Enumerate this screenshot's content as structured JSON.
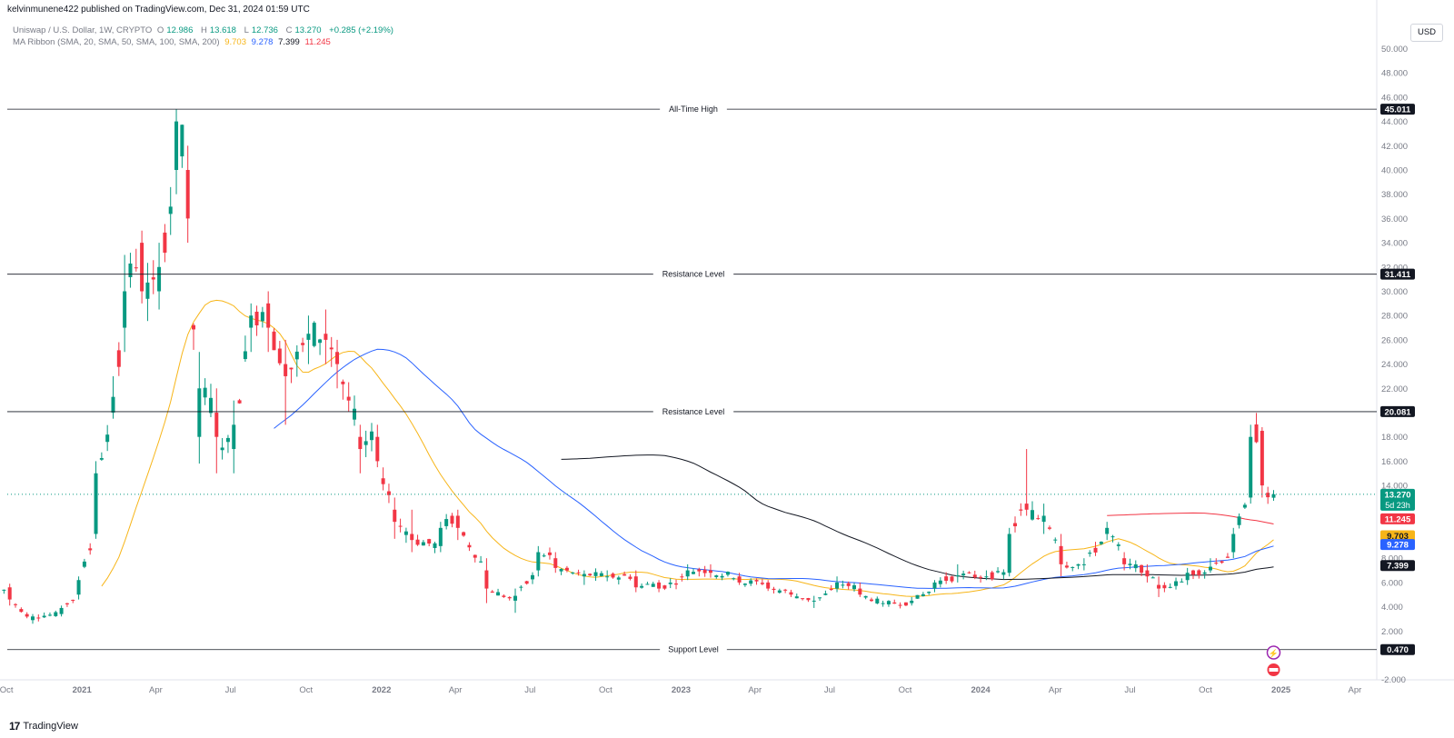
{
  "header": {
    "published": "kelvinmunene422 published on TradingView.com, Dec 31, 2024 01:59 UTC"
  },
  "legend": {
    "symbol": "Uniswap / U.S. Dollar, 1W, CRYPTO",
    "o_label": "O",
    "o_value": "12.986",
    "h_label": "H",
    "h_value": "13.618",
    "l_label": "L",
    "l_value": "12.736",
    "c_label": "C",
    "c_value": "13.270",
    "change": "+0.285 (+2.19%)",
    "ma_label": "MA Ribbon (SMA, 20, SMA, 50, SMA, 100, SMA, 200)",
    "ma_values": [
      {
        "value": "9.703",
        "color": "#f7b518"
      },
      {
        "value": "9.278",
        "color": "#2962ff"
      },
      {
        "value": "7.399",
        "color": "#131722"
      },
      {
        "value": "11.245",
        "color": "#f23645"
      }
    ]
  },
  "toolbar": {
    "currency": "USD"
  },
  "footer": {
    "brand": "TradingView",
    "mark": "17"
  },
  "chart_data": {
    "type": "candlestick",
    "ylim": [
      -2,
      52
    ],
    "y_ticks": [
      "-2.000",
      "2.000",
      "4.000",
      "6.000",
      "8.000",
      "14.000",
      "16.000",
      "18.000",
      "22.000",
      "24.000",
      "26.000",
      "28.000",
      "30.000",
      "32.000",
      "34.000",
      "36.000",
      "38.000",
      "40.000",
      "42.000",
      "44.000",
      "46.000",
      "48.000",
      "50.000"
    ],
    "x_range": [
      "2020-09-01",
      "2025-05-01"
    ],
    "x_ticks": [
      {
        "label": "Oct",
        "date": "2020-10-01"
      },
      {
        "label": "2021",
        "date": "2021-01-01"
      },
      {
        "label": "Apr",
        "date": "2021-04-01"
      },
      {
        "label": "Jul",
        "date": "2021-07-01"
      },
      {
        "label": "Oct",
        "date": "2021-10-01"
      },
      {
        "label": "2022",
        "date": "2022-01-01"
      },
      {
        "label": "Apr",
        "date": "2022-04-01"
      },
      {
        "label": "Jul",
        "date": "2022-07-01"
      },
      {
        "label": "Oct",
        "date": "2022-10-01"
      },
      {
        "label": "2023",
        "date": "2023-01-01"
      },
      {
        "label": "Apr",
        "date": "2023-04-01"
      },
      {
        "label": "Jul",
        "date": "2023-07-01"
      },
      {
        "label": "Oct",
        "date": "2023-10-01"
      },
      {
        "label": "2024",
        "date": "2024-01-01"
      },
      {
        "label": "Apr",
        "date": "2024-04-01"
      },
      {
        "label": "Jul",
        "date": "2024-07-01"
      },
      {
        "label": "Oct",
        "date": "2024-10-01"
      },
      {
        "label": "2025",
        "date": "2025-01-01"
      },
      {
        "label": "Apr",
        "date": "2025-04-01"
      }
    ],
    "horizontal_levels": [
      {
        "label": "All-Time High",
        "value": 45.011,
        "tag": "45.011"
      },
      {
        "label": "Resistance Level",
        "value": 31.411,
        "tag": "31.411"
      },
      {
        "label": "Resistance Level",
        "value": 20.081,
        "tag": "20.081"
      },
      {
        "label": "Support Level",
        "value": 0.47,
        "tag": "0.470"
      }
    ],
    "price_tags": [
      {
        "value": 13.27,
        "text": "13.270",
        "sub": "5d 23h",
        "color": "#089981"
      },
      {
        "value": 11.245,
        "text": "11.245",
        "color": "#f23645"
      },
      {
        "value": 9.703,
        "text": "9.703",
        "color": "#f7b518"
      },
      {
        "value": 9.278,
        "text": "9.278",
        "color": "#2962ff"
      },
      {
        "value": 7.399,
        "text": "7.399",
        "color": "#131722"
      }
    ],
    "last_price": 13.27,
    "colors": {
      "up": "#089981",
      "down": "#f23645",
      "ma20": "#f7b518",
      "ma50": "#2962ff",
      "ma100": "#131722",
      "ma200": "#f23645"
    },
    "ohlc_anchors": [
      [
        "2020-09-14",
        3.5,
        5.0,
        8.7,
        0.47
      ],
      [
        "2020-10-05",
        5.6,
        4.6,
        5.9,
        4.1
      ],
      [
        "2020-11-02",
        2.9,
        3.2,
        3.4,
        2.6
      ],
      [
        "2020-12-07",
        3.4,
        3.9,
        4.1,
        3.2
      ],
      [
        "2020-12-28",
        5.0,
        6.2,
        6.5,
        4.6
      ],
      [
        "2021-01-18",
        10.0,
        15.0,
        16.0,
        9.6
      ],
      [
        "2021-02-08",
        20.0,
        21.3,
        23.0,
        19.5
      ],
      [
        "2021-02-22",
        27.0,
        30.0,
        33.0,
        25.0
      ],
      [
        "2021-03-15",
        34.0,
        30.0,
        35.0,
        29.0
      ],
      [
        "2021-04-05",
        30.0,
        32.0,
        34.0,
        28.5
      ],
      [
        "2021-04-26",
        40.0,
        44.0,
        45.0,
        38.0
      ],
      [
        "2021-05-10",
        40.0,
        36.0,
        42.0,
        34.0
      ],
      [
        "2021-05-24",
        18.0,
        22.0,
        25.0,
        15.8
      ],
      [
        "2021-06-14",
        20.0,
        18.0,
        22.0,
        15.0
      ],
      [
        "2021-07-05",
        17.0,
        19.0,
        21.0,
        15.0
      ],
      [
        "2021-07-26",
        27.0,
        28.0,
        29.0,
        25.0
      ],
      [
        "2021-08-16",
        29.0,
        27.0,
        30.0,
        25.0
      ],
      [
        "2021-09-06",
        24.0,
        23.0,
        26.0,
        19.0
      ],
      [
        "2021-10-04",
        26.0,
        26.5,
        28.0,
        24.0
      ],
      [
        "2021-10-25",
        26.5,
        26.0,
        28.5,
        24.0
      ],
      [
        "2021-11-08",
        25.0,
        24.0,
        26.0,
        22.0
      ],
      [
        "2021-12-06",
        18.0,
        17.0,
        19.0,
        15.0
      ],
      [
        "2021-12-27",
        18.0,
        16.0,
        19.0,
        15.5
      ],
      [
        "2022-01-17",
        12.0,
        11.0,
        13.0,
        9.6
      ],
      [
        "2022-02-07",
        10.0,
        9.5,
        12.0,
        8.5
      ],
      [
        "2022-03-14",
        9.0,
        10.5,
        11.0,
        8.5
      ],
      [
        "2022-04-04",
        11.5,
        10.5,
        12.0,
        9.5
      ],
      [
        "2022-05-09",
        7.0,
        5.5,
        8.0,
        4.3
      ],
      [
        "2022-06-13",
        4.5,
        4.9,
        5.5,
        3.5
      ],
      [
        "2022-07-11",
        7.0,
        8.5,
        9.0,
        6.5
      ],
      [
        "2022-08-01",
        8.0,
        7.2,
        8.5,
        6.8
      ],
      [
        "2022-09-05",
        6.5,
        6.7,
        7.0,
        5.8
      ],
      [
        "2022-10-03",
        6.5,
        6.5,
        7.0,
        6.1
      ],
      [
        "2022-11-07",
        6.5,
        5.6,
        7.0,
        5.2
      ],
      [
        "2022-12-05",
        6.0,
        5.5,
        6.2,
        5.2
      ],
      [
        "2023-01-09",
        6.5,
        7.0,
        7.5,
        6.2
      ],
      [
        "2023-02-06",
        7.0,
        6.8,
        7.5,
        6.4
      ],
      [
        "2023-03-13",
        6.5,
        6.0,
        6.8,
        5.8
      ],
      [
        "2023-04-17",
        6.0,
        5.5,
        6.2,
        5.3
      ],
      [
        "2023-05-15",
        5.2,
        5.0,
        5.4,
        4.8
      ],
      [
        "2023-06-12",
        4.5,
        4.5,
        4.9,
        3.9
      ],
      [
        "2023-07-10",
        5.5,
        6.0,
        6.5,
        5.2
      ],
      [
        "2023-08-07",
        5.5,
        5.0,
        6.0,
        4.8
      ],
      [
        "2023-09-04",
        4.3,
        4.3,
        4.5,
        4.0
      ],
      [
        "2023-10-09",
        4.3,
        4.5,
        4.8,
        4.1
      ],
      [
        "2023-11-06",
        5.5,
        6.0,
        6.2,
        5.2
      ],
      [
        "2023-12-04",
        6.5,
        6.6,
        7.5,
        6.0
      ],
      [
        "2024-01-08",
        6.5,
        6.5,
        7.0,
        6.2
      ],
      [
        "2024-02-05",
        6.8,
        10.0,
        10.5,
        6.5
      ],
      [
        "2024-02-26",
        12.5,
        12.0,
        17.0,
        11.5
      ],
      [
        "2024-03-18",
        11.0,
        11.5,
        12.5,
        10.0
      ],
      [
        "2024-04-08",
        9.0,
        7.5,
        10.0,
        6.5
      ],
      [
        "2024-05-06",
        7.5,
        7.5,
        8.0,
        7.0
      ],
      [
        "2024-06-03",
        10.0,
        10.5,
        11.0,
        9.5
      ],
      [
        "2024-06-24",
        8.0,
        7.5,
        8.5,
        7.0
      ],
      [
        "2024-07-22",
        7.0,
        6.5,
        7.5,
        6.0
      ],
      [
        "2024-08-05",
        5.8,
        5.5,
        6.5,
        4.8
      ],
      [
        "2024-09-09",
        6.2,
        6.8,
        7.2,
        5.8
      ],
      [
        "2024-10-07",
        7.0,
        7.3,
        8.0,
        6.8
      ],
      [
        "2024-11-04",
        8.5,
        10.0,
        10.5,
        8.0
      ],
      [
        "2024-11-25",
        13.0,
        18.0,
        19.0,
        12.5
      ],
      [
        "2024-12-09",
        18.5,
        14.0,
        18.8,
        13.0
      ],
      [
        "2024-12-23",
        12.986,
        13.27,
        13.618,
        12.736
      ]
    ]
  }
}
